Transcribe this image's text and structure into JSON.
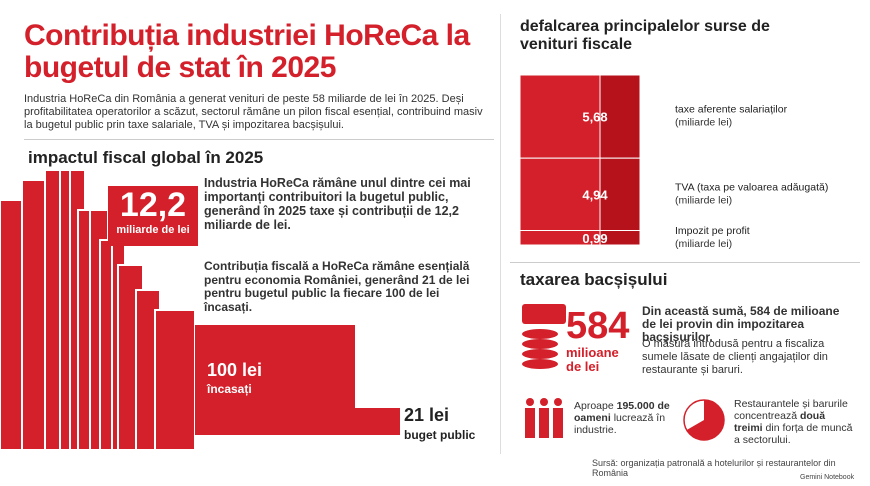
{
  "header": {
    "title": "Contribuția industriei HoReCa la bugetul de stat în 2025",
    "intro": "Industria HoReCa din România a generat venituri de peste 58 miliarde de lei în 2025. Deși profitabilitatea operatorilor a scăzut, sectorul rămâne un pilon fiscal esențial, contribuind masiv la bugetul public prin taxe salariale, TVA și impozitarea bacșișului."
  },
  "impact": {
    "heading": "impactul fiscal global în 2025",
    "big_number": "12,2",
    "big_unit": "miliarde de lei",
    "paragraph_1": "Industria HoReCa rămâne unul dintre cei mai importanți contribuitori la bugetul public, generând în 2025 taxe și contribuții de 12,2 miliarde de lei.",
    "paragraph_2": "Contribuția fiscală a HoReCa rămâne esențială pentru economia României, generând 21 de lei pentru bugetul public la fiecare 100 de lei încasați.",
    "collected_amount": "100 lei",
    "collected_label": "încasați",
    "budget_amount": "21 lei",
    "budget_label": "buget public"
  },
  "breakdown": {
    "heading": "defalcarea principalelor surse de venituri fiscale",
    "sources": [
      {
        "value": 5.68,
        "value_label": "5,68",
        "label": "taxe aferente salariaților",
        "unit": "(miliarde lei)"
      },
      {
        "value": 4.94,
        "value_label": "4,94",
        "label": "TVA (taxa pe valoarea adăugată)",
        "unit": "(miliarde lei)"
      },
      {
        "value": 0.99,
        "value_label": "0,99",
        "label": "Impozit pe profit",
        "unit": "(miliarde lei)"
      }
    ]
  },
  "tips": {
    "heading": "taxarea bacșișului",
    "big_number": "584",
    "big_unit": "milioane de lei",
    "statement": "Din această sumă, 584 de milioane de lei provin din impozitarea bacșișurilor.",
    "note": "O măsură introdusă pentru a fiscaliza sumele lăsate de clienți angajaților din restaurante și baruri.",
    "workers": [
      "Aproape",
      "195.000 de oameni",
      "lucrează în industrie."
    ],
    "share": [
      "Restaurantele și barurile concentrează",
      "două treimi",
      "din forța de muncă a sectorului."
    ]
  },
  "footer": {
    "source": "Sursă: organizația patronală a hotelurilor și restaurantelor din România",
    "brand": "Gemini Notebook"
  }
}
